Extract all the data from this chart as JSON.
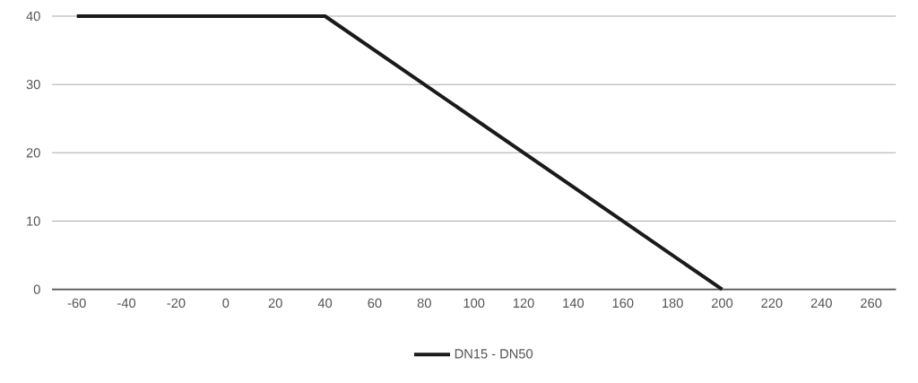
{
  "chart_data": {
    "type": "line",
    "x": [
      -60,
      40,
      200
    ],
    "series": [
      {
        "name": "DN15 - DN50",
        "color": "#1a1a1a",
        "values": [
          40,
          40,
          0
        ]
      }
    ],
    "xlim": [
      -70,
      270
    ],
    "ylim": [
      0,
      40
    ],
    "xticks": [
      -60,
      -40,
      -20,
      0,
      20,
      40,
      60,
      80,
      100,
      120,
      140,
      160,
      180,
      200,
      220,
      240,
      260
    ],
    "yticks": [
      0,
      10,
      20,
      30,
      40
    ],
    "grid": "y",
    "legend": "bottom"
  }
}
